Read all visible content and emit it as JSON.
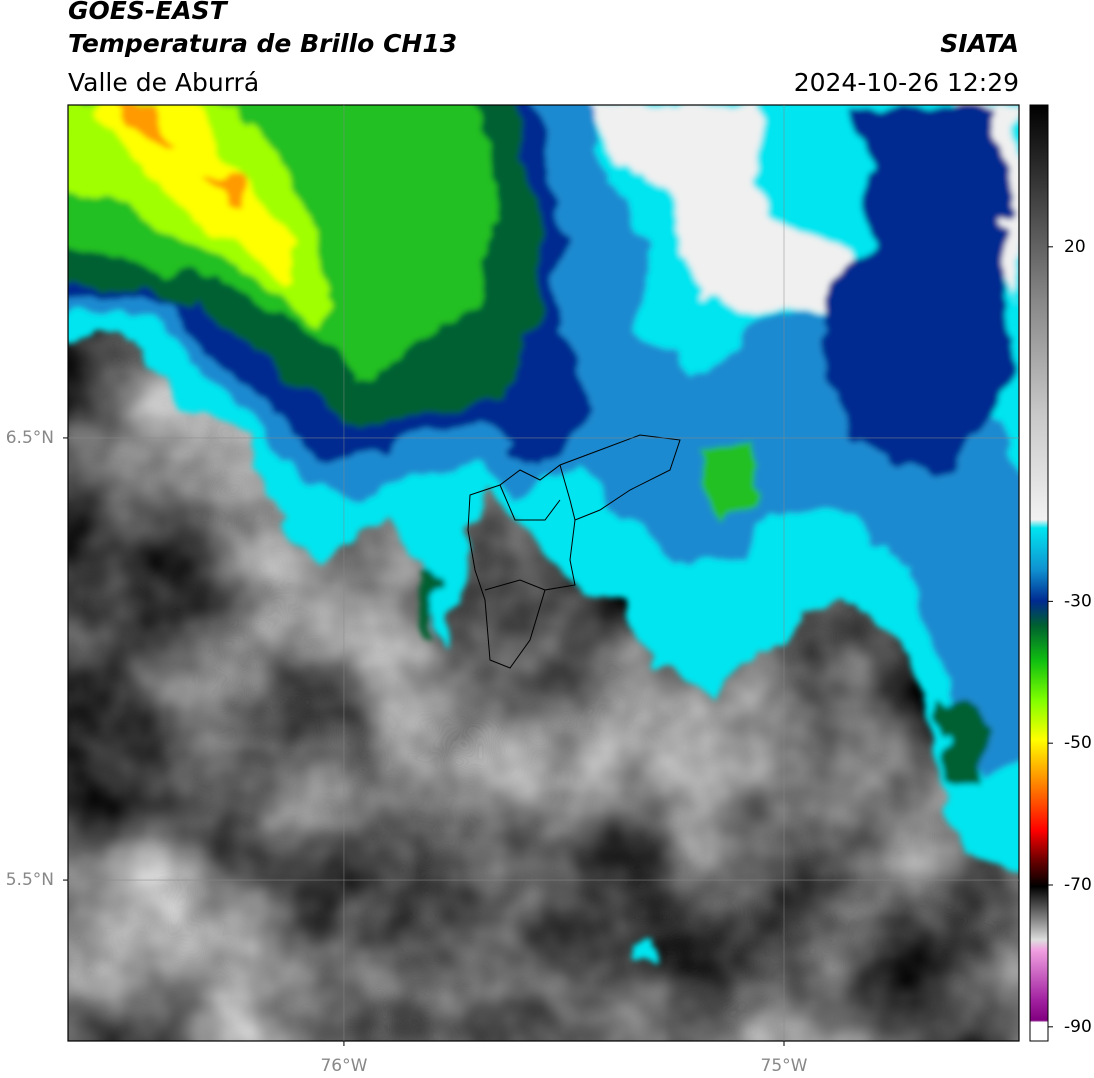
{
  "header": {
    "satellite": "GOES-EAST",
    "product": "Temperatura de Brillo CH13",
    "region": "Valle de Aburrá",
    "source": "SIATA",
    "datetime": "2024-10-26 12:29"
  },
  "map": {
    "xlim": [
      -76.627,
      -74.466
    ],
    "ylim": [
      5.136,
      7.253
    ],
    "xticks": [
      {
        "value": -76,
        "label": "76°W"
      },
      {
        "value": -75,
        "label": "75°W"
      }
    ],
    "yticks": [
      {
        "value": 6.5,
        "label": "6.5°N"
      },
      {
        "value": 5.5,
        "label": "5.5°N"
      }
    ],
    "grid": true
  },
  "colorbar": {
    "lim": [
      -92,
      40
    ],
    "ticks": [
      20,
      -30,
      -50,
      -70,
      -90
    ]
  }
}
